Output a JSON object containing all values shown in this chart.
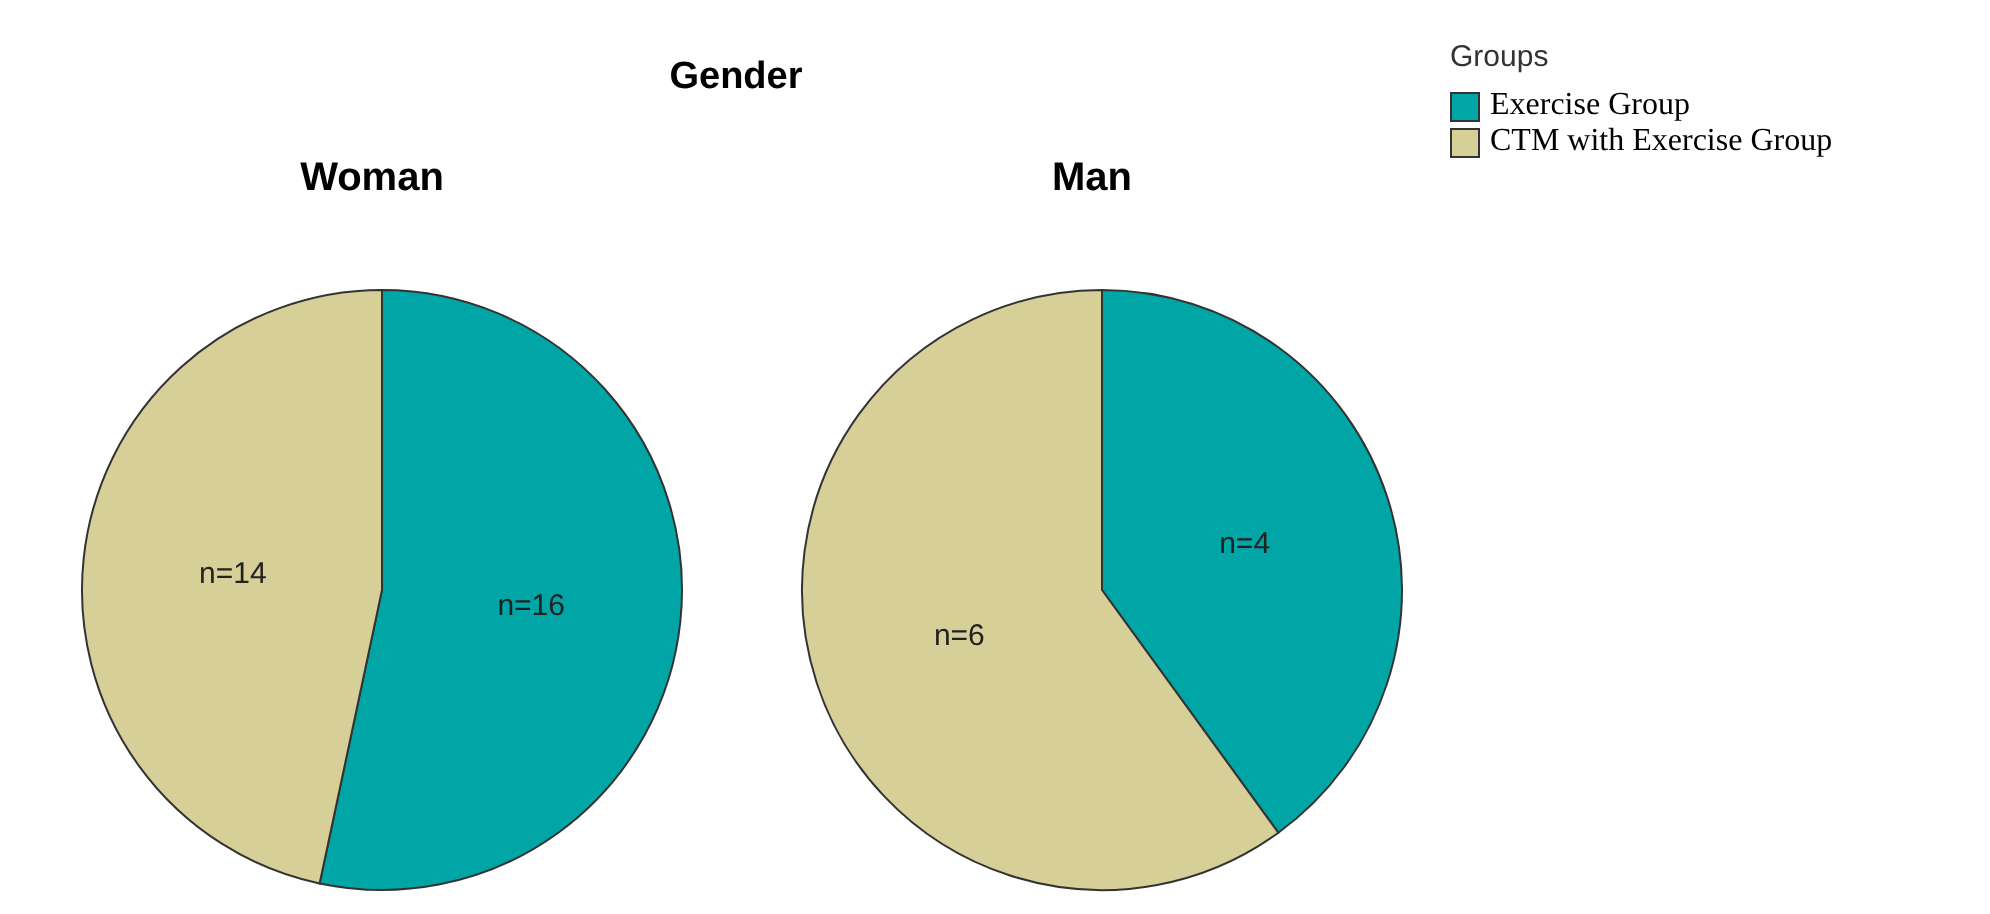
{
  "chart_data": [
    {
      "type": "pie",
      "title": "Woman",
      "annotations": [
        "Gender"
      ],
      "categories": [
        null,
        null
      ],
      "values": [
        16,
        14
      ],
      "colors": [
        "#00a6a6",
        "#d6cf98"
      ],
      "value_labels": [
        "n=16",
        "n=14"
      ],
      "legend": false
    },
    {
      "type": "pie",
      "title": "Man",
      "legend_title": "Groups",
      "categories": [
        "Exercise Group",
        "CTM with Exercise Group"
      ],
      "values": [
        4,
        6
      ],
      "colors": [
        "#00a6a6",
        "#d6cf98"
      ],
      "value_labels": [
        "n=4",
        "n=6"
      ],
      "legend": "top right"
    }
  ]
}
